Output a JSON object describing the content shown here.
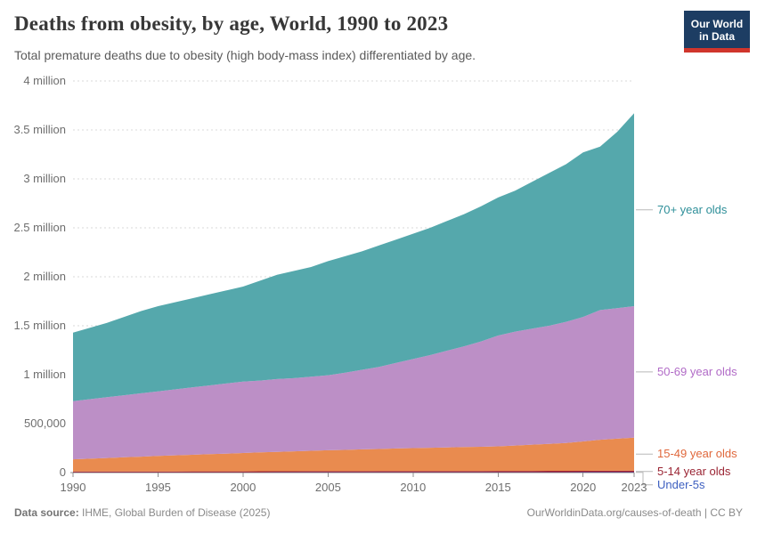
{
  "header": {
    "logo": {
      "line1": "Our World",
      "line2": "in Data"
    }
  },
  "footer": {
    "source_label": "Data source:",
    "source_text": " IHME, Global Burden of Disease (2025)",
    "link": "OurWorldinData.org/causes-of-death",
    "separator": " | ",
    "license": "CC BY"
  },
  "colors": {
    "logo_bg": "#1D3D63",
    "logo_stripe": "#D0352C",
    "grid": "#dadada",
    "axis": "#8f8f8f",
    "axis_text": "#6e6e6e"
  },
  "chart_data": {
    "type": "area",
    "stacked": true,
    "title": "Deaths from obesity, by age, World, 1990 to 2023",
    "subtitle": "Total premature deaths due to obesity (high body-mass index) differentiated by age.",
    "xlim": [
      1990,
      2023
    ],
    "ylim": [
      0,
      4000000
    ],
    "grid": "dashed-horizontal",
    "legend_position": "right-edge-labels",
    "x": [
      1990,
      1991,
      1992,
      1993,
      1994,
      1995,
      1996,
      1997,
      1998,
      1999,
      2000,
      2001,
      2002,
      2003,
      2004,
      2005,
      2006,
      2007,
      2008,
      2009,
      2010,
      2011,
      2012,
      2013,
      2014,
      2015,
      2016,
      2017,
      2018,
      2019,
      2020,
      2021,
      2022,
      2023
    ],
    "xticks": [
      1990,
      1995,
      2000,
      2005,
      2010,
      2015,
      2020,
      2023
    ],
    "yticks": [
      {
        "value": 0,
        "label": "0"
      },
      {
        "value": 500000,
        "label": "500,000"
      },
      {
        "value": 1000000,
        "label": "1 million"
      },
      {
        "value": 1500000,
        "label": "1.5 million"
      },
      {
        "value": 2000000,
        "label": "2 million"
      },
      {
        "value": 2500000,
        "label": "2.5 million"
      },
      {
        "value": 3000000,
        "label": "3 million"
      },
      {
        "value": 3500000,
        "label": "3.5 million"
      },
      {
        "value": 4000000,
        "label": "4 million"
      }
    ],
    "series": [
      {
        "id": "under5",
        "label": "Under-5s",
        "color": "#3D5FC0",
        "label_color": "#3D5FC0",
        "values": [
          2600,
          2650,
          2700,
          2750,
          2800,
          2850,
          2900,
          2950,
          3000,
          3050,
          3100,
          3150,
          3200,
          3250,
          3300,
          3350,
          3400,
          3450,
          3500,
          3550,
          3600,
          3650,
          3700,
          3750,
          3800,
          3850,
          3900,
          3950,
          4000,
          4050,
          4100,
          4150,
          4200,
          4250
        ]
      },
      {
        "id": "5to14",
        "label": "5-14 year olds",
        "color": "#A3242F",
        "label_color": "#9A2433",
        "values": [
          8000,
          8200,
          8400,
          8600,
          8800,
          9000,
          9200,
          9400,
          9600,
          9800,
          10000,
          10200,
          10400,
          10600,
          10800,
          11000,
          11200,
          11400,
          11600,
          11800,
          12000,
          12200,
          12400,
          12600,
          12800,
          13000,
          13300,
          13600,
          13900,
          14200,
          14500,
          14800,
          15100,
          15400
        ]
      },
      {
        "id": "15to49",
        "label": "15-49 year olds",
        "color": "#E98B4F",
        "label_color": "#E0683C",
        "values": [
          124400,
          131150,
          137900,
          144650,
          151400,
          158150,
          163900,
          169650,
          175400,
          181150,
          186900,
          192650,
          198400,
          203150,
          208900,
          213650,
          217400,
          222150,
          225900,
          230650,
          234400,
          238150,
          240900,
          244650,
          247400,
          251150,
          258800,
          267450,
          276100,
          284750,
          299400,
          316050,
          326700,
          337350
        ]
      },
      {
        "id": "50to69",
        "label": "50-69 year olds",
        "color": "#BC8FC6",
        "label_color": "#B16BC7",
        "values": [
          595000,
          608000,
          621000,
          634000,
          647000,
          660000,
          674000,
          688000,
          702000,
          716000,
          730000,
          734000,
          743000,
          748000,
          757000,
          767000,
          788000,
          813000,
          839000,
          874000,
          910000,
          946000,
          988000,
          1029000,
          1076000,
          1132000,
          1164000,
          1185000,
          1206000,
          1237000,
          1272000,
          1325000,
          1334000,
          1343000
        ]
      },
      {
        "id": "70plus",
        "label": "70+ year olds",
        "color": "#55A8AC",
        "label_color": "#2E8F99",
        "values": [
          700000,
          730000,
          760000,
          800000,
          840000,
          870000,
          890000,
          910000,
          930000,
          950000,
          970000,
          1020000,
          1065000,
          1095000,
          1120000,
          1165000,
          1190000,
          1210000,
          1240000,
          1260000,
          1280000,
          1300000,
          1325000,
          1350000,
          1380000,
          1410000,
          1440000,
          1500000,
          1560000,
          1610000,
          1680000,
          1670000,
          1800000,
          1970000
        ]
      }
    ]
  }
}
